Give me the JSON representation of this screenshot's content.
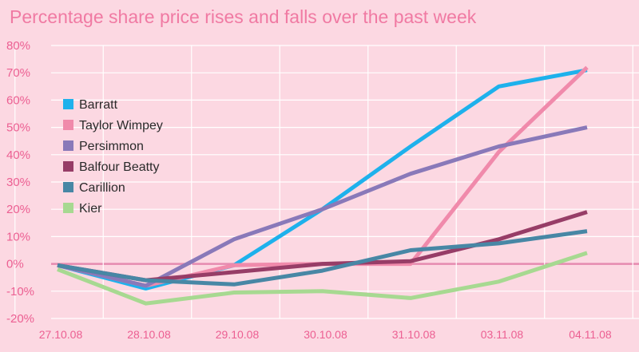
{
  "chart_data": {
    "type": "line",
    "title": "Percentage share price rises and falls over the past week",
    "categories": [
      "27.10.08",
      "28.10.08",
      "29.10.08",
      "30.10.08",
      "31.10.08",
      "03.11.08",
      "04.11.08"
    ],
    "ylim": [
      -20,
      80
    ],
    "yticks": [
      "80%",
      "70%",
      "60%",
      "50%",
      "40%",
      "30%",
      "20%",
      "10%",
      "0%",
      "-10%",
      "-20%"
    ],
    "grid": true,
    "legend_position": "left",
    "series": [
      {
        "name": "Barratt",
        "color": "#1eb1ec",
        "values": [
          -0.5,
          -9,
          -0.5,
          20,
          43,
          65,
          71
        ]
      },
      {
        "name": "Taylor Wimpey",
        "color": "#f08aab",
        "values": [
          -0.5,
          -8,
          -0.5,
          0,
          0,
          41,
          72
        ]
      },
      {
        "name": "Persimmon",
        "color": "#8979b9",
        "values": [
          -0.5,
          -8,
          9,
          20,
          33,
          43,
          50
        ]
      },
      {
        "name": "Balfour Beatty",
        "color": "#973d67",
        "values": [
          -0.5,
          -6,
          -3,
          0,
          1,
          9,
          19
        ]
      },
      {
        "name": "Carillion",
        "color": "#4887a5",
        "values": [
          -0.5,
          -6,
          -7.5,
          -2.5,
          5,
          7.5,
          12
        ]
      },
      {
        "name": "Kier",
        "color": "#a7d991",
        "values": [
          -2,
          -14.5,
          -10.5,
          -10,
          -12.5,
          -6.5,
          4
        ]
      }
    ]
  }
}
